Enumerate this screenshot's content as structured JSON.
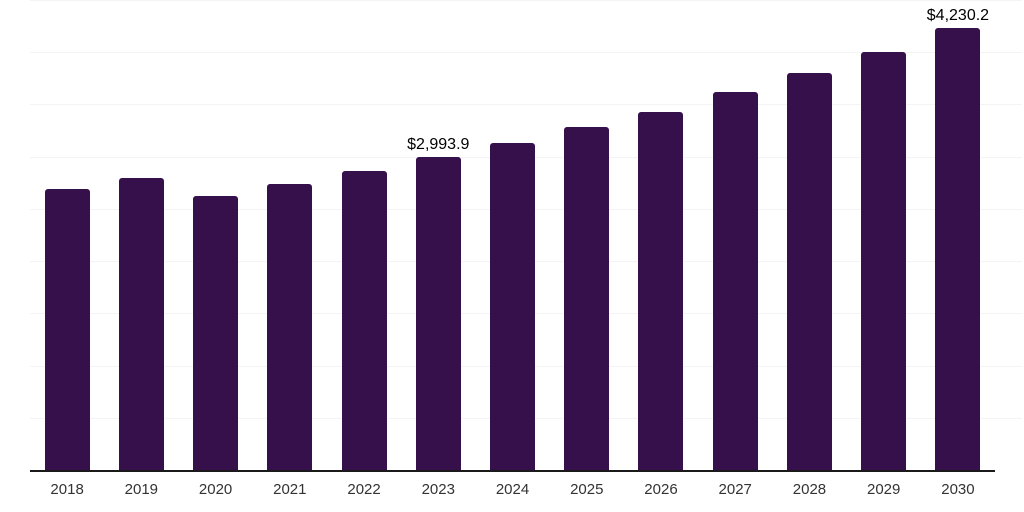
{
  "chart_data": {
    "type": "bar",
    "title": "",
    "xlabel": "",
    "ylabel": "",
    "categories": [
      "2018",
      "2019",
      "2020",
      "2021",
      "2022",
      "2023",
      "2024",
      "2025",
      "2026",
      "2027",
      "2028",
      "2029",
      "2030"
    ],
    "values": [
      2695,
      2800,
      2620,
      2740,
      2865,
      2993.9,
      3135,
      3280,
      3430,
      3620,
      3805,
      4000,
      4230.2
    ],
    "data_labels": [
      "",
      "",
      "",
      "",
      "",
      "$2,993.9",
      "",
      "",
      "",
      "",
      "",
      "",
      "$4,230.2"
    ],
    "ylim": [
      0,
      4500
    ],
    "grid_step": 500,
    "grid": true,
    "legend": false,
    "y_tick_labels_visible": false,
    "colors": {
      "bar": "#36104b",
      "gridline": "#f4f4f4",
      "axis_line": "#1a1a1a",
      "tick_label": "#333333",
      "data_label": "#000000",
      "background": "#ffffff"
    }
  }
}
